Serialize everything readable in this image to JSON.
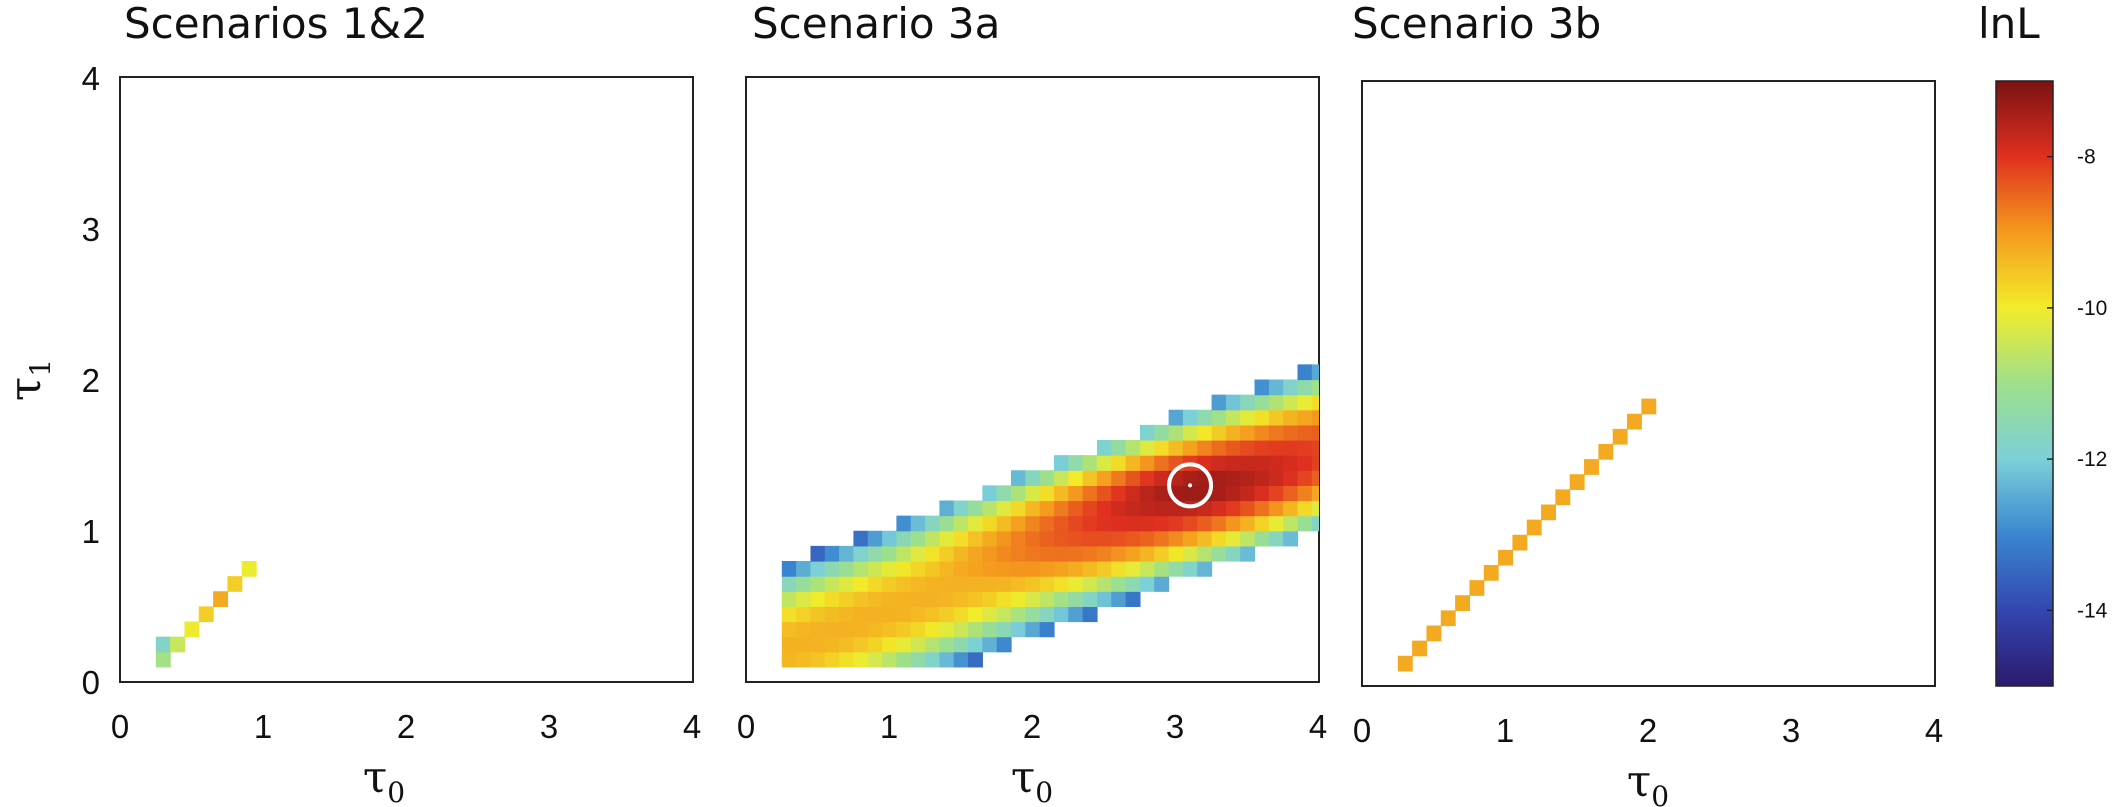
{
  "chart_data": [
    {
      "type": "heatmap",
      "title": "Scenarios 1&2",
      "xlabel": "τ0",
      "ylabel": "τ1",
      "xlim": [
        0,
        4
      ],
      "ylim": [
        0,
        4
      ],
      "xticks": [
        "0",
        "1",
        "2",
        "3",
        "4"
      ],
      "yticks": [
        "0",
        "1",
        "2",
        "3",
        "4"
      ],
      "region": {
        "x_start": 0.25,
        "x_end": 0.95,
        "slope": 0.9,
        "intercept": -0.08,
        "halfwidth": 0.06
      },
      "peak": null
    },
    {
      "type": "heatmap",
      "title": "Scenario 3a",
      "xlabel": "τ0",
      "xlim": [
        0,
        4
      ],
      "ylim": [
        0,
        4
      ],
      "xticks": [
        "0",
        "1",
        "2",
        "3",
        "4"
      ],
      "region": {
        "x_start": 0.25,
        "x_end": 4.0,
        "slope": 0.36,
        "intercept": 0.12,
        "halfwidth": 0.55
      },
      "peak": {
        "x": 3.1,
        "y": 1.3,
        "lnL": -7.0
      }
    },
    {
      "type": "heatmap",
      "title": "Scenario 3b",
      "xlabel": "τ0",
      "xlim": [
        0,
        4
      ],
      "ylim": [
        0,
        4
      ],
      "xticks": [
        "0",
        "1",
        "2",
        "3",
        "4"
      ],
      "region": {
        "x_start": 0.25,
        "x_end": 2.0,
        "slope": 1.0,
        "intercept": -0.15,
        "halfwidth": 0.09
      },
      "peak": null
    }
  ],
  "colorbar": {
    "title": "lnL",
    "range": [
      -15,
      -7
    ],
    "ticks": [
      -8,
      -10,
      -12,
      -14
    ],
    "tick_labels": [
      "-8",
      "-10",
      "-12",
      "-14"
    ],
    "colors": [
      "#2b1a6e",
      "#3346b0",
      "#3a86d0",
      "#7cd0d8",
      "#9ee08a",
      "#f2ec2a",
      "#f59a1e",
      "#e03020",
      "#7a1212"
    ]
  }
}
